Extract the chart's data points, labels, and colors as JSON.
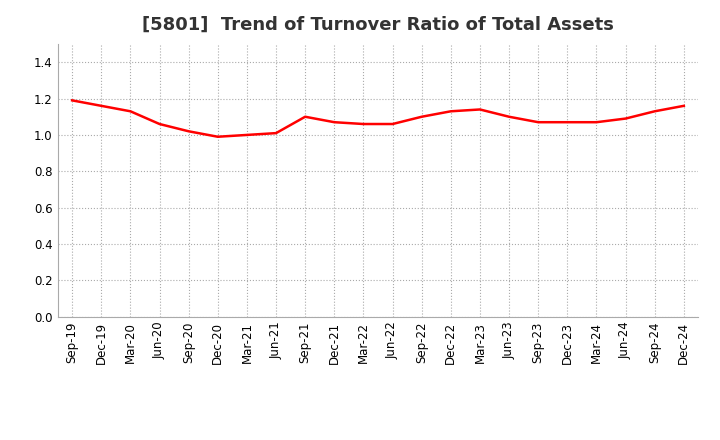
{
  "title": "[5801]  Trend of Turnover Ratio of Total Assets",
  "x_labels": [
    "Sep-19",
    "Dec-19",
    "Mar-20",
    "Jun-20",
    "Sep-20",
    "Dec-20",
    "Mar-21",
    "Jun-21",
    "Sep-21",
    "Dec-21",
    "Mar-22",
    "Jun-22",
    "Sep-22",
    "Dec-22",
    "Mar-23",
    "Jun-23",
    "Sep-23",
    "Dec-23",
    "Mar-24",
    "Jun-24",
    "Sep-24",
    "Dec-24"
  ],
  "values": [
    1.19,
    1.16,
    1.13,
    1.06,
    1.02,
    0.99,
    1.0,
    1.01,
    1.1,
    1.07,
    1.06,
    1.06,
    1.1,
    1.13,
    1.14,
    1.1,
    1.07,
    1.07,
    1.07,
    1.09,
    1.13,
    1.16
  ],
  "line_color": "#FF0000",
  "line_width": 1.8,
  "ylim": [
    0.0,
    1.5
  ],
  "yticks": [
    0.0,
    0.2,
    0.4,
    0.6,
    0.8,
    1.0,
    1.2,
    1.4
  ],
  "background_color": "#FFFFFF",
  "plot_bg_color": "#FFFFFF",
  "grid_color": "#AAAAAA",
  "title_fontsize": 13,
  "tick_fontsize": 8.5
}
